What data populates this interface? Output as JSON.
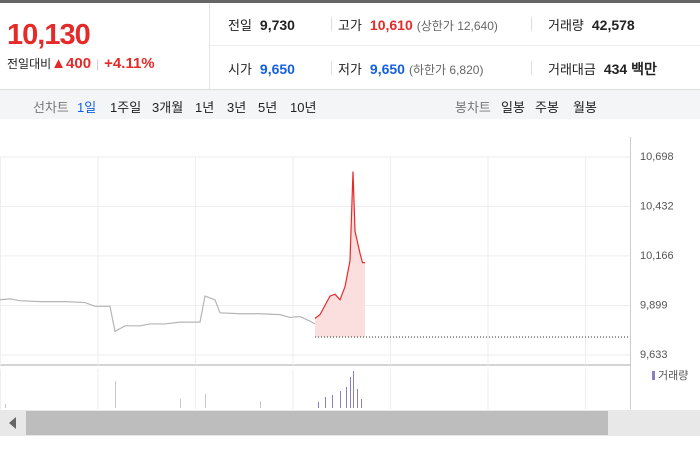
{
  "header": {
    "price": "10,130",
    "change_label": "전일대비",
    "change": "▲400",
    "change_pct": "+4.11%",
    "stats": [
      {
        "label": "전일",
        "value": "9,730"
      },
      {
        "label": "고가",
        "value": "10,610",
        "note": "(상한가 12,640)"
      },
      {
        "label": "거래량",
        "value": "42,578"
      },
      {
        "label": "시가",
        "value": "9,650"
      },
      {
        "label": "저가",
        "value": "9,650",
        "note": "(하한가 6,820)"
      },
      {
        "label": "거래대금",
        "value": "434 백만"
      }
    ]
  },
  "tabs": {
    "line_label": "선차트",
    "line_periods": [
      "1일",
      "1주일",
      "3개월",
      "1년",
      "3년",
      "5년",
      "10년"
    ],
    "candle_label": "봉차트",
    "candle_periods": [
      "일봉",
      "주봉",
      "월봉"
    ]
  },
  "chart_data": {
    "type": "line",
    "xlim": [
      0,
      126
    ],
    "ylim": [
      9633,
      10698
    ],
    "yticks": [
      {
        "value": 10698,
        "label": "10,698"
      },
      {
        "value": 10432,
        "label": "10,432"
      },
      {
        "value": 10166,
        "label": "10,166"
      },
      {
        "value": 9899,
        "label": "9,899"
      },
      {
        "value": 9633,
        "label": "9,633"
      }
    ],
    "grid": true,
    "reference_line": 9730,
    "volume_label": "거래량",
    "series": [
      {
        "color": "#b5b5b5",
        "x": [
          0,
          2,
          4,
          8,
          13,
          17,
          19,
          22,
          23,
          25,
          28,
          30,
          33,
          36,
          40,
          41,
          43,
          44,
          48,
          52,
          56,
          58,
          60,
          62,
          63
        ],
        "values": [
          9930,
          9935,
          9925,
          9920,
          9920,
          9915,
          9895,
          9895,
          9760,
          9790,
          9790,
          9800,
          9800,
          9810,
          9810,
          9950,
          9930,
          9860,
          9855,
          9855,
          9850,
          9835,
          9840,
          9815,
          9800
        ]
      },
      {
        "color": "#e52a2a",
        "fill": "#fbdede",
        "x": [
          63,
          64,
          65,
          66,
          67,
          68,
          69,
          70,
          70.6,
          71,
          72,
          72.5,
          73
        ],
        "values": [
          9830,
          9850,
          9900,
          9950,
          9960,
          9930,
          10000,
          10140,
          10620,
          10300,
          10180,
          10130,
          10130
        ]
      }
    ]
  }
}
